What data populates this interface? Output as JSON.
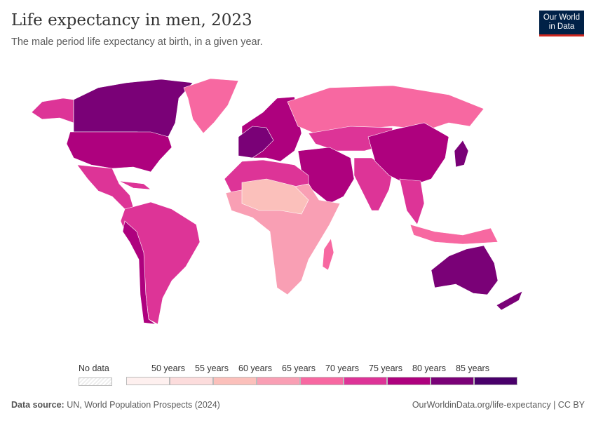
{
  "header": {
    "title": "Life expectancy in men, 2023",
    "subtitle": "The male period life expectancy at birth, in a given year.",
    "logo": "Our World in Data"
  },
  "legend": {
    "no_data_label": "No data",
    "bins": [
      "50 years",
      "55 years",
      "60 years",
      "65 years",
      "70 years",
      "75 years",
      "80 years",
      "85 years"
    ],
    "colors": [
      "#fef0ef",
      "#fcdcdc",
      "#fbc0bb",
      "#f99fb4",
      "#f768a1",
      "#dd3497",
      "#ae017e",
      "#7a0177",
      "#49006a"
    ]
  },
  "footer": {
    "source_label": "Data source:",
    "source": "UN, World Population Prospects (2024)",
    "link": "OurWorldinData.org/life-expectancy | CC BY"
  }
}
